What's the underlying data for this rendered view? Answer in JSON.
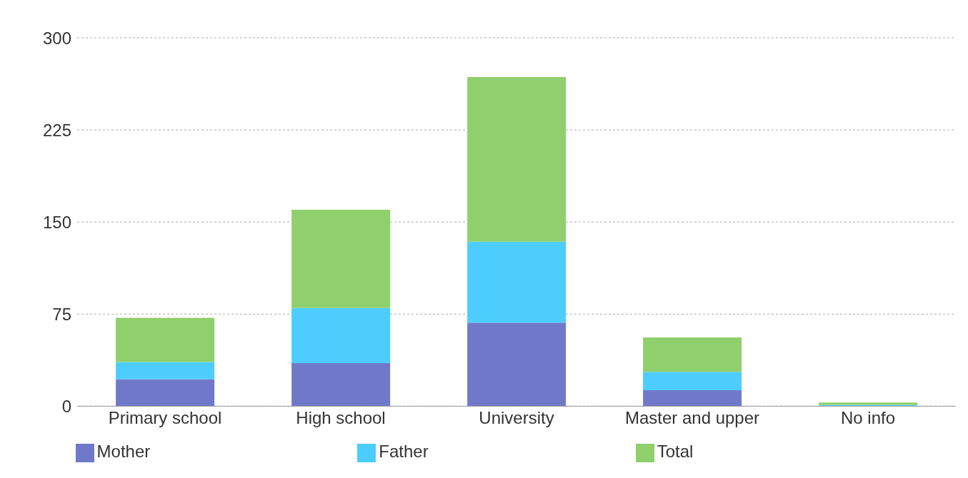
{
  "chart_data": {
    "type": "bar",
    "stacked": true,
    "categories": [
      "Primary school",
      "High school",
      "University",
      "Master and upper",
      "No info"
    ],
    "series": [
      {
        "name": "Mother",
        "color": "#7079c9",
        "values": [
          22,
          35,
          68,
          13,
          0
        ]
      },
      {
        "name": "Father",
        "color": "#4dcdfd",
        "values": [
          14,
          45,
          66,
          15,
          1
        ]
      },
      {
        "name": "Total",
        "color": "#8fcf6c",
        "values": [
          36,
          80,
          134,
          28,
          2
        ]
      }
    ],
    "ylim": [
      0,
      300
    ],
    "yticks": [
      0,
      75,
      150,
      225,
      300
    ],
    "grid": "y",
    "legend": "bottom"
  }
}
